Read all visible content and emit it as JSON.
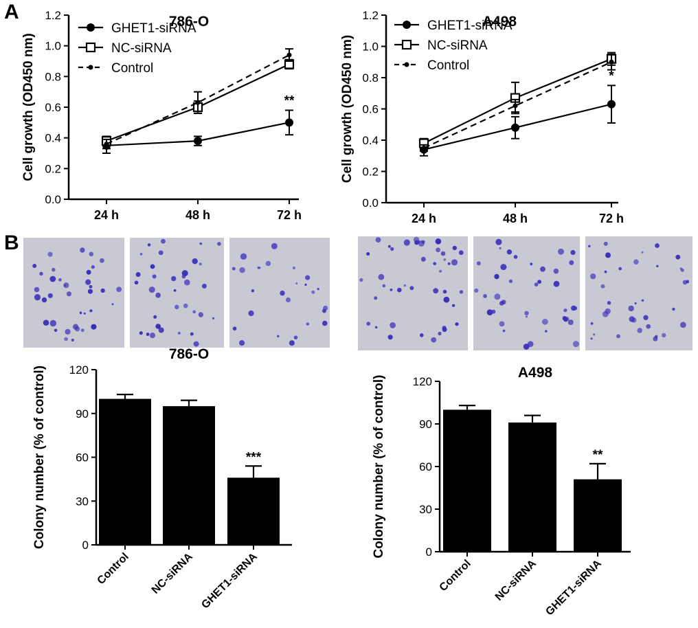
{
  "panel_labels": [
    "A",
    "B"
  ],
  "chart_data": [
    {
      "type": "line",
      "title": "786-O",
      "ylabel": "Cell growth (OD450 nm)",
      "xlabel": "",
      "categories": [
        "24 h",
        "48 h",
        "72 h"
      ],
      "ylim": [
        0,
        1.2
      ],
      "yticks": [
        "0.0",
        "0.2",
        "0.4",
        "0.6",
        "0.8",
        "1.0",
        "1.2"
      ],
      "legend_position": "top-left",
      "series": [
        {
          "name": "GHET1-siRNA",
          "marker": "filled-circle",
          "dash": "solid",
          "values": [
            0.35,
            0.38,
            0.5
          ],
          "errors": [
            0.05,
            0.03,
            0.08
          ]
        },
        {
          "name": "NC-siRNA",
          "marker": "open-square",
          "dash": "solid",
          "values": [
            0.38,
            0.6,
            0.88
          ],
          "errors": [
            0.03,
            0.04,
            0.03
          ]
        },
        {
          "name": "Control",
          "marker": "small-diamond",
          "dash": "dashed",
          "values": [
            0.36,
            0.63,
            0.94
          ],
          "errors": [
            0.03,
            0.07,
            0.04
          ]
        }
      ],
      "annotations": [
        {
          "category": "72 h",
          "text": "**"
        }
      ]
    },
    {
      "type": "line",
      "title": "A498",
      "ylabel": "Cell growth (OD450 nm)",
      "xlabel": "",
      "categories": [
        "24 h",
        "48 h",
        "72 h"
      ],
      "ylim": [
        0,
        1.2
      ],
      "yticks": [
        "0.0",
        "0.2",
        "0.4",
        "0.6",
        "0.8",
        "1.0",
        "1.2"
      ],
      "legend_position": "top-left",
      "series": [
        {
          "name": "GHET1-siRNA",
          "marker": "filled-circle",
          "dash": "solid",
          "values": [
            0.34,
            0.48,
            0.63
          ],
          "errors": [
            0.04,
            0.07,
            0.12
          ]
        },
        {
          "name": "NC-siRNA",
          "marker": "open-square",
          "dash": "solid",
          "values": [
            0.38,
            0.67,
            0.92
          ],
          "errors": [
            0.03,
            0.1,
            0.04
          ]
        },
        {
          "name": "Control",
          "marker": "small-diamond",
          "dash": "dashed",
          "values": [
            0.35,
            0.62,
            0.9
          ],
          "errors": [
            0.02,
            0.04,
            0.05
          ]
        }
      ],
      "annotations": [
        {
          "category": "72 h",
          "text": "*"
        }
      ]
    },
    {
      "type": "bar",
      "title": "786-O",
      "ylabel": "Colony number (% of control)",
      "xlabel": "",
      "categories": [
        "Control",
        "NC-siRNA",
        "GHET1-siRNA"
      ],
      "values": [
        100,
        95,
        46
      ],
      "errors": [
        3,
        4,
        8
      ],
      "ylim": [
        0,
        120
      ],
      "yticks": [
        "0",
        "30",
        "60",
        "90",
        "120"
      ],
      "annotations": [
        {
          "category": "GHET1-siRNA",
          "text": "***"
        }
      ]
    },
    {
      "type": "bar",
      "title": "A498",
      "ylabel": "Colony number (% of control)",
      "xlabel": "",
      "categories": [
        "Control",
        "NC-siRNA",
        "GHET1-siRNA"
      ],
      "values": [
        100,
        91,
        51
      ],
      "errors": [
        3,
        5,
        11
      ],
      "ylim": [
        0,
        120
      ],
      "yticks": [
        "0",
        "30",
        "60",
        "90",
        "120"
      ],
      "annotations": [
        {
          "category": "GHET1-siRNA",
          "text": "**"
        }
      ]
    }
  ],
  "colony_images": {
    "background": "#c9c9d4",
    "colony_color": "#3a2fb8",
    "count": 6
  },
  "colors": {
    "ink": "#000000",
    "bar_fill": "#000000"
  }
}
